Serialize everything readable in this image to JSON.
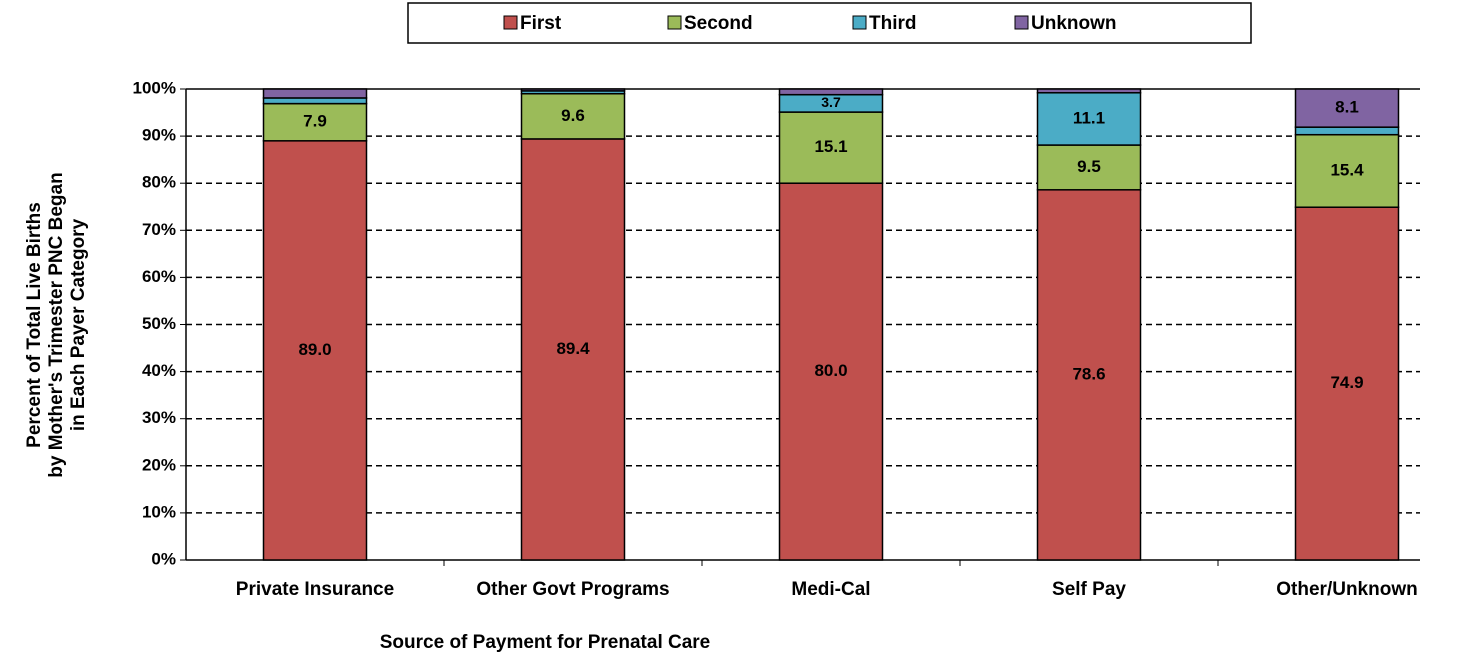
{
  "chart_data": {
    "type": "stacked_bar",
    "ylabel": [
      "Percent of Total Live Births",
      "by Mother's Trimester PNC Began",
      "in Each Payer Category"
    ],
    "xlabel": "Source of Payment for Prenatal Care",
    "categories": [
      "Private Insurance",
      "Other Govt Programs",
      "Medi-Cal",
      "Self Pay",
      "Other/Unknown"
    ],
    "series": [
      {
        "name": "First",
        "color": "#C0504D",
        "values": [
          89.0,
          89.4,
          80.0,
          78.6,
          74.9
        ],
        "value_labels": [
          "89.0",
          "89.4",
          "80.0",
          "78.6",
          "74.9"
        ]
      },
      {
        "name": "Second",
        "color": "#9BBB59",
        "values": [
          7.9,
          9.6,
          15.1,
          9.5,
          15.4
        ],
        "value_labels": [
          "7.9",
          "9.6",
          "15.1",
          "9.5",
          "15.4"
        ]
      },
      {
        "name": "Third",
        "color": "#4BACC6",
        "values": [
          1.2,
          0.6,
          3.7,
          11.1,
          1.6
        ],
        "value_labels": [
          null,
          null,
          "3.7",
          "11.1",
          null
        ]
      },
      {
        "name": "Unknown",
        "color": "#8064A2",
        "values": [
          1.9,
          0.4,
          1.2,
          0.8,
          8.1
        ],
        "value_labels": [
          null,
          null,
          null,
          null,
          "8.1"
        ]
      }
    ],
    "ylim": [
      0,
      100
    ],
    "yticks": [
      {
        "value": 0,
        "label": "0%"
      },
      {
        "value": 10,
        "label": "10%"
      },
      {
        "value": 20,
        "label": "20%"
      },
      {
        "value": 30,
        "label": "30%"
      },
      {
        "value": 40,
        "label": "40%"
      },
      {
        "value": 50,
        "label": "50%"
      },
      {
        "value": 60,
        "label": "60%"
      },
      {
        "value": 70,
        "label": "70%"
      },
      {
        "value": 80,
        "label": "80%"
      },
      {
        "value": 90,
        "label": "90%"
      },
      {
        "value": 100,
        "label": "100%"
      }
    ],
    "grid": true,
    "legend": "top"
  }
}
